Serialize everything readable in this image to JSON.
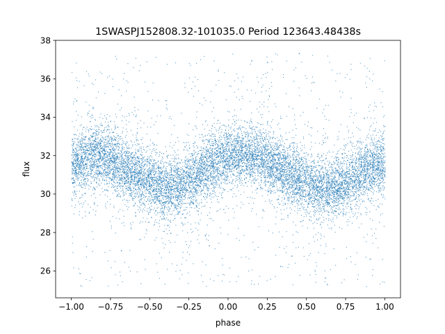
{
  "chart_data": {
    "type": "scatter",
    "title": "1SWASPJ152808.32-101035.0 Period 123643.48438s",
    "xlabel": "phase",
    "ylabel": "flux",
    "xlim": [
      -1.1,
      1.1
    ],
    "ylim": [
      24.6,
      38.0
    ],
    "xticks": [
      -1.0,
      -0.75,
      -0.5,
      -0.25,
      0.0,
      0.25,
      0.5,
      0.75,
      1.0
    ],
    "xtick_labels": [
      "−1.00",
      "−0.75",
      "−0.50",
      "−0.25",
      "0.00",
      "0.25",
      "0.50",
      "0.75",
      "1.00"
    ],
    "yticks": [
      26,
      28,
      30,
      32,
      34,
      36,
      38
    ],
    "ytick_labels": [
      "26",
      "28",
      "30",
      "32",
      "34",
      "36",
      "38"
    ],
    "grid": false,
    "legend": "none",
    "marker_color": "#1f77b4",
    "series": [
      {
        "x": [
          -1.0,
          -0.9,
          -0.8,
          -0.7,
          -0.6,
          -0.5,
          -0.4,
          -0.3,
          -0.2,
          -0.1,
          0.0,
          0.1,
          0.2,
          0.3,
          0.4,
          0.5,
          0.6,
          0.7,
          0.8,
          0.9,
          1.0
        ],
        "y": [
          31.5,
          31.9,
          32.0,
          31.6,
          31.1,
          30.6,
          30.3,
          30.5,
          31.0,
          31.6,
          32.0,
          32.1,
          31.9,
          31.5,
          31.0,
          30.6,
          30.3,
          30.4,
          30.9,
          31.4,
          31.6
        ]
      }
    ]
  }
}
